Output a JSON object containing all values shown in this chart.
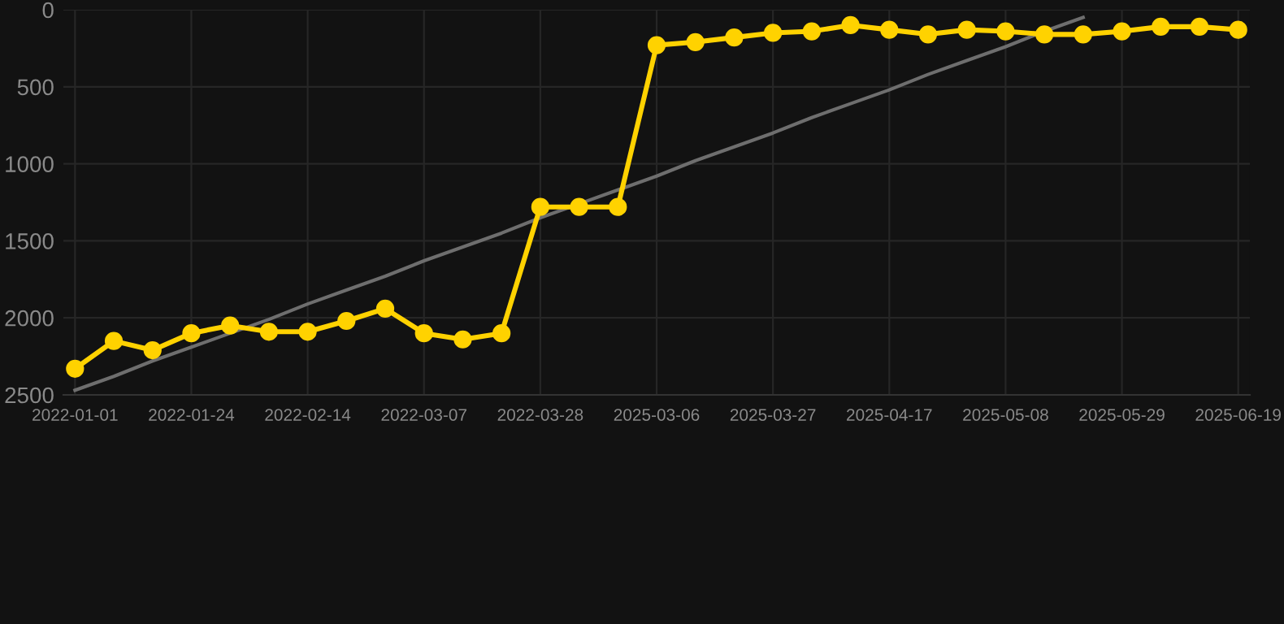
{
  "chart_data": {
    "type": "line",
    "categories": [
      "2022-01-01",
      null,
      null,
      "2022-01-24",
      null,
      null,
      "2022-02-14",
      null,
      null,
      "2022-03-07",
      null,
      null,
      "2022-03-28",
      null,
      null,
      "2025-03-06",
      null,
      null,
      "2025-03-27",
      null,
      null,
      "2025-04-17",
      null,
      null,
      "2025-05-08",
      null,
      null,
      "2025-05-29",
      null,
      null,
      "2025-06-19"
    ],
    "series": [
      {
        "color": "#ffd200",
        "marker": "circle",
        "values": [
          2330,
          2150,
          2210,
          2100,
          2050,
          2090,
          2090,
          2020,
          1940,
          2100,
          2140,
          2100,
          1280,
          1280,
          1280,
          230,
          210,
          180,
          150,
          140,
          100,
          130,
          160,
          130,
          140,
          160,
          160,
          140,
          110,
          110,
          130
        ]
      },
      {
        "color": "#6e6e6e",
        "marker": "none",
        "values": [
          2470,
          2380,
          2280,
          2190,
          2100,
          2010,
          1910,
          1820,
          1730,
          1630,
          1540,
          1450,
          1350,
          1260,
          1170,
          1080,
          980,
          890,
          800,
          700,
          610,
          520,
          420,
          330,
          240,
          140,
          50,
          null,
          null,
          null,
          null
        ]
      }
    ],
    "ylim": [
      2500,
      0
    ],
    "yticks": [
      0,
      500,
      1000,
      1500,
      2000,
      2500
    ],
    "grid": true,
    "line_style": "solid"
  }
}
